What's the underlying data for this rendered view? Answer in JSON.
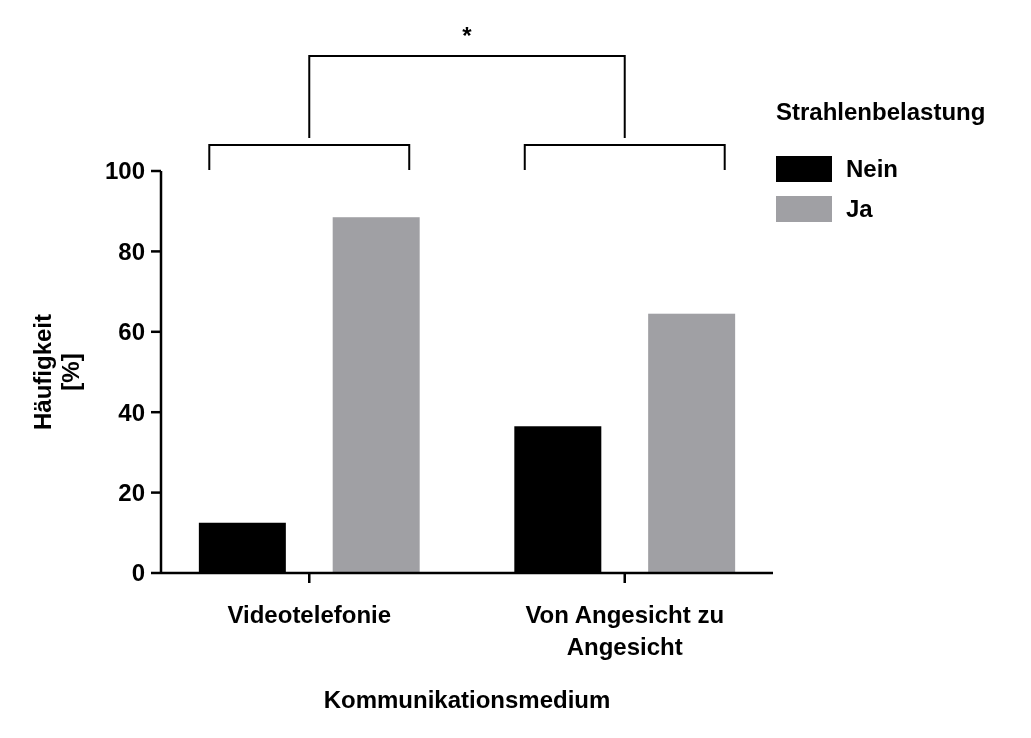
{
  "chart_data": {
    "type": "bar",
    "xlabel": "Kommunikationsmedium",
    "ylabel": "Häufigkeit [%]",
    "legend_title": "Strahlenbelastung",
    "categories": [
      "Videotelefonie",
      "Von Angesicht zu Angesicht"
    ],
    "series": [
      {
        "name": "Nein",
        "color": "#000000",
        "values": [
          12.5,
          36.5
        ]
      },
      {
        "name": "Ja",
        "color": "#a0a0a4",
        "values": [
          88.5,
          64.5
        ]
      }
    ],
    "ylim": [
      0,
      100
    ],
    "yticks": [
      0,
      20,
      40,
      60,
      80,
      100
    ],
    "grid": false,
    "legend": "top right",
    "annotations": [
      "*"
    ]
  }
}
